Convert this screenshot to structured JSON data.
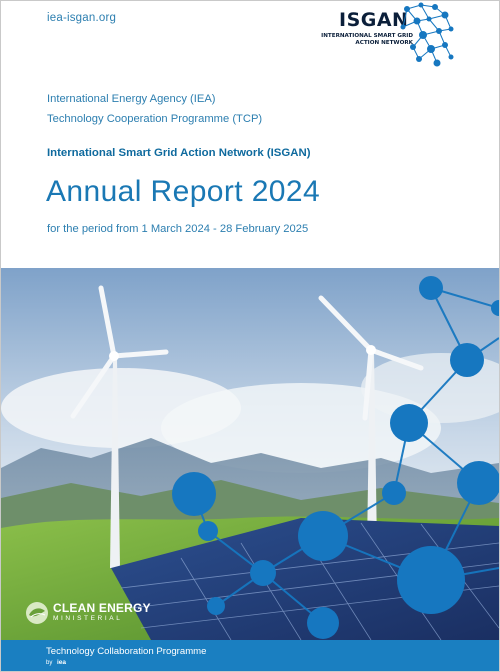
{
  "header": {
    "site_url": "iea-isgan.org",
    "logo": {
      "word": "ISGAN",
      "subtitle_line1": "INTERNATIONAL SMART GRID",
      "subtitle_line2": "ACTION NETWORK",
      "icon": "network-nodes-icon"
    }
  },
  "intro": {
    "org_line1": "International Energy Agency (IEA)",
    "org_line2": "Technology Cooperation Programme (TCP)",
    "network_name": "International Smart Grid Action Network (ISGAN)",
    "title": "Annual Report 2024",
    "period": "for the period from 1 March 2024 - 28 February 2025"
  },
  "hero": {
    "description_icon": "wind-turbines-solar-panels-image",
    "partner_logo": {
      "name": "CLEAN ENERGY",
      "sub": "MINISTERIAL",
      "icon": "globe-leaf-icon"
    }
  },
  "footer": {
    "line1": "Technology Collaboration Programme",
    "by": "by",
    "iea": "iea"
  },
  "colors": {
    "accent_blue": "#1a78b4",
    "footer_blue": "#1a7fc1",
    "node_blue": "#1677c0",
    "logo_navy": "#0b1f3a"
  }
}
